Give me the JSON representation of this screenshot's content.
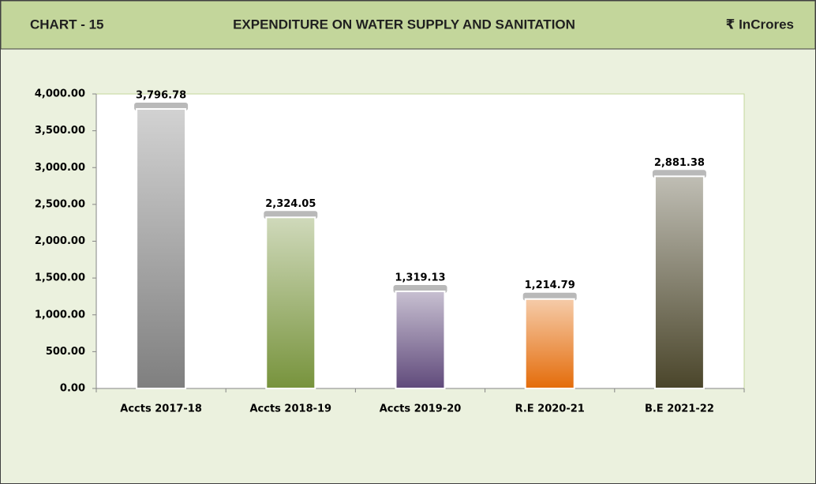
{
  "chart_data": {
    "type": "bar",
    "chart_number": "CHART - 15",
    "title": "EXPENDITURE ON WATER SUPPLY AND SANITATION",
    "unit": "₹ InCrores",
    "categories": [
      "Accts 2017-18",
      "Accts 2018-19",
      "Accts 2019-20",
      "R.E 2020-21",
      "B.E 2021-22"
    ],
    "values": [
      3796.78,
      2324.05,
      1319.13,
      1214.79,
      2881.38
    ],
    "value_labels": [
      "3,796.78",
      "2,324.05",
      "1,319.13",
      "1,214.79",
      "2,881.38"
    ],
    "colors": [
      "#7f7f7f",
      "#77933c",
      "#604a7b",
      "#e46c0a",
      "#4a452a"
    ],
    "ylim": [
      0,
      4000
    ],
    "yticks": [
      {
        "value": 0,
        "label": "0.00"
      },
      {
        "value": 500,
        "label": "500.00"
      },
      {
        "value": 1000,
        "label": "1,000.00"
      },
      {
        "value": 1500,
        "label": "1,500.00"
      },
      {
        "value": 2000,
        "label": "2,000.00"
      },
      {
        "value": 2500,
        "label": "2,500.00"
      },
      {
        "value": 3000,
        "label": "3,000.00"
      },
      {
        "value": 3500,
        "label": "3,500.00"
      },
      {
        "value": 4000,
        "label": "4,000.00"
      }
    ],
    "grid": false
  }
}
